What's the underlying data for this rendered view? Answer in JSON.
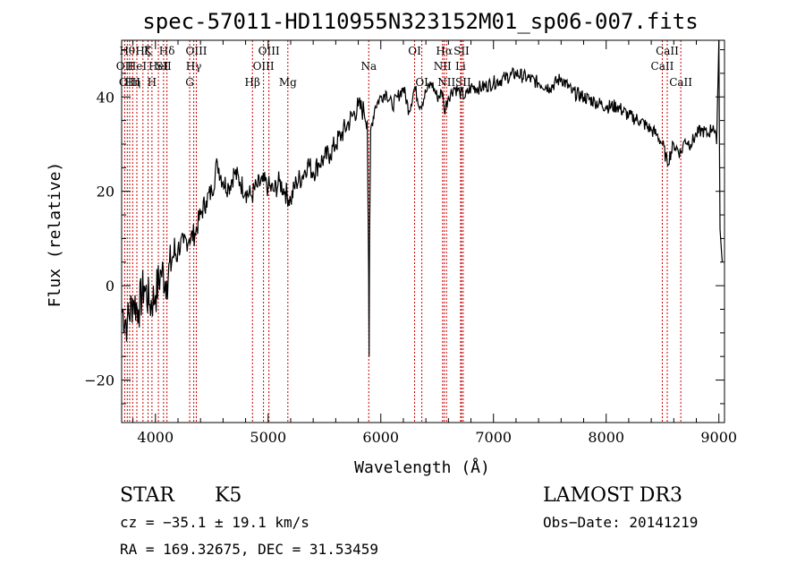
{
  "chart_data": {
    "type": "line",
    "title": "spec-57011-HD110955N323152M01_sp06-007.fits",
    "xlabel": "Wavelength (Å)",
    "ylabel": "Flux (relative)",
    "xlim": [
      3700,
      9050
    ],
    "ylim": [
      -29,
      52
    ],
    "xticks": [
      4000,
      5000,
      6000,
      7000,
      8000,
      9000
    ],
    "xtick_labels": [
      "4000",
      "5000",
      "6000",
      "7000",
      "8000",
      "9000"
    ],
    "yticks": [
      -20,
      0,
      20,
      40
    ],
    "ytick_labels": [
      "−20",
      "0",
      "20",
      "40"
    ],
    "series": [
      {
        "name": "flux",
        "color": "#000000",
        "x": [
          3700,
          3750,
          3800,
          3850,
          3900,
          3950,
          4000,
          4050,
          4100,
          4150,
          4200,
          4250,
          4300,
          4350,
          4400,
          4450,
          4500,
          4550,
          4600,
          4650,
          4700,
          4750,
          4800,
          4850,
          4900,
          4950,
          5000,
          5050,
          5100,
          5150,
          5200,
          5250,
          5300,
          5350,
          5400,
          5450,
          5500,
          5550,
          5600,
          5650,
          5700,
          5750,
          5800,
          5850,
          5880,
          5892,
          5896,
          5900,
          5910,
          5950,
          6000,
          6050,
          6100,
          6150,
          6200,
          6250,
          6300,
          6350,
          6400,
          6450,
          6500,
          6550,
          6563,
          6600,
          6650,
          6700,
          6750,
          6800,
          6900,
          7000,
          7100,
          7200,
          7300,
          7400,
          7500,
          7600,
          7700,
          7800,
          7900,
          8000,
          8100,
          8200,
          8300,
          8400,
          8450,
          8500,
          8542,
          8600,
          8662,
          8700,
          8750,
          8800,
          8850,
          8900,
          8950,
          8980,
          9000,
          9010,
          9030
        ],
        "y": [
          -5,
          -8,
          -3,
          -5,
          0,
          -4,
          -2,
          3,
          1,
          6,
          8,
          9,
          10,
          11,
          15,
          18,
          20,
          26,
          22,
          21,
          24,
          22,
          20,
          19,
          21,
          22,
          21,
          20,
          22,
          20,
          18,
          22,
          23,
          26,
          24,
          26,
          27,
          28,
          30,
          32,
          34,
          36,
          38,
          37,
          35,
          2,
          -15,
          10,
          33,
          38,
          40,
          41,
          38,
          40,
          42,
          37,
          42,
          38,
          41,
          43,
          40,
          41,
          37,
          40,
          42,
          41,
          40,
          42,
          42,
          43,
          44,
          45,
          44,
          43,
          42,
          44,
          41,
          40,
          39,
          38,
          38,
          36,
          35,
          33,
          32,
          30,
          26,
          30,
          28,
          31,
          30,
          32,
          33,
          32,
          34,
          30,
          52,
          12,
          5
        ]
      }
    ],
    "lines": [
      {
        "wavelength": 3727,
        "label": "OII",
        "row": 2
      },
      {
        "wavelength": 3750,
        "label": "Hθ",
        "row": 1
      },
      {
        "wavelength": 3771,
        "label": "OIII",
        "row": 3
      },
      {
        "wavelength": 3798,
        "label": "Hη",
        "row": 3
      },
      {
        "wavelength": 3835,
        "label": "HeI",
        "row": 2
      },
      {
        "wavelength": 3889,
        "label": "Hζ",
        "row": 1
      },
      {
        "wavelength": 3934,
        "label": "K",
        "row": 1
      },
      {
        "wavelength": 3969,
        "label": "H",
        "row": 3
      },
      {
        "wavelength": 4026,
        "label": "HeI",
        "row": 2
      },
      {
        "wavelength": 4072,
        "label": "SII",
        "row": 2
      },
      {
        "wavelength": 4102,
        "label": "Hδ",
        "row": 1
      },
      {
        "wavelength": 4304,
        "label": "G",
        "row": 3
      },
      {
        "wavelength": 4340,
        "label": "Hγ",
        "row": 2
      },
      {
        "wavelength": 4363,
        "label": "OIII",
        "row": 1
      },
      {
        "wavelength": 4861,
        "label": "Hβ",
        "row": 3
      },
      {
        "wavelength": 4959,
        "label": "OIII",
        "row": 2
      },
      {
        "wavelength": 5007,
        "label": "OIII",
        "row": 1
      },
      {
        "wavelength": 5175,
        "label": "Mg",
        "row": 3
      },
      {
        "wavelength": 5893,
        "label": "Na",
        "row": 2
      },
      {
        "wavelength": 6300,
        "label": "OI",
        "row": 1
      },
      {
        "wavelength": 6364,
        "label": "OI",
        "row": 3
      },
      {
        "wavelength": 6548,
        "label": "NII",
        "row": 2
      },
      {
        "wavelength": 6563,
        "label": "Hα",
        "row": 1
      },
      {
        "wavelength": 6583,
        "label": "NII",
        "row": 3
      },
      {
        "wavelength": 6708,
        "label": "Li",
        "row": 2
      },
      {
        "wavelength": 6716,
        "label": "SII",
        "row": 1
      },
      {
        "wavelength": 6731,
        "label": "SII",
        "row": 3
      },
      {
        "wavelength": 8498,
        "label": "CaII",
        "row": 2
      },
      {
        "wavelength": 8542,
        "label": "CaII",
        "row": 1
      },
      {
        "wavelength": 8662,
        "label": "CaII",
        "row": 3
      }
    ]
  },
  "info": {
    "class_label": "STAR",
    "subclass": "K5",
    "survey": "LAMOST DR3",
    "cz": "cz = −35.1 ± 19.1 km/s",
    "obs_date": "Obs−Date: 20141219",
    "coords": "RA = 169.32675, DEC =  31.53459"
  }
}
